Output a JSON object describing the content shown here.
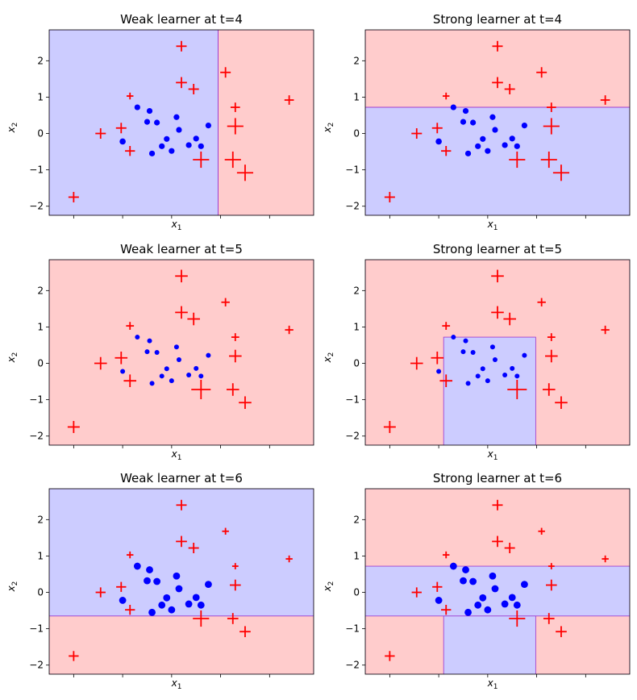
{
  "colors": {
    "positive_region": "#ffcccc",
    "negative_region": "#ccccff",
    "positive_marker": "#ff0000",
    "negative_marker": "#0000ff",
    "boundary": "#9932cc"
  },
  "axes_common": {
    "xlabel": "x_1",
    "ylabel": "x_2",
    "xlim": [
      -2.5,
      2.9
    ],
    "ylim": [
      -2.25,
      2.85
    ],
    "yticks": [
      -2,
      -1,
      0,
      1,
      2
    ],
    "yticklabels": [
      "−2",
      "−1",
      "0",
      "1",
      "2"
    ],
    "xticks": [
      -2,
      -1,
      0,
      1,
      2
    ],
    "x_tick_labels_shown": false
  },
  "points": {
    "positive": [
      {
        "x": -2.0,
        "y": -1.75
      },
      {
        "x": -1.45,
        "y": 0.0
      },
      {
        "x": -1.03,
        "y": 0.15
      },
      {
        "x": -0.85,
        "y": -0.48
      },
      {
        "x": -0.85,
        "y": 1.03
      },
      {
        "x": 0.2,
        "y": 1.4
      },
      {
        "x": 0.2,
        "y": 2.4
      },
      {
        "x": 0.45,
        "y": 1.22
      },
      {
        "x": 0.6,
        "y": -0.72
      },
      {
        "x": 1.1,
        "y": 1.68
      },
      {
        "x": 1.3,
        "y": 0.72
      },
      {
        "x": 1.3,
        "y": 0.2
      },
      {
        "x": 1.25,
        "y": -0.72
      },
      {
        "x": 1.5,
        "y": -1.08
      },
      {
        "x": 2.4,
        "y": 0.92
      }
    ],
    "negative": [
      {
        "x": -1.0,
        "y": -0.22
      },
      {
        "x": -0.7,
        "y": 0.72
      },
      {
        "x": -0.5,
        "y": 0.32
      },
      {
        "x": -0.45,
        "y": 0.62
      },
      {
        "x": -0.4,
        "y": -0.55
      },
      {
        "x": -0.2,
        "y": -0.35
      },
      {
        "x": -0.3,
        "y": 0.3
      },
      {
        "x": -0.1,
        "y": -0.15
      },
      {
        "x": 0.0,
        "y": -0.48
      },
      {
        "x": 0.1,
        "y": 0.45
      },
      {
        "x": 0.15,
        "y": 0.1
      },
      {
        "x": 0.35,
        "y": -0.32
      },
      {
        "x": 0.5,
        "y": -0.14
      },
      {
        "x": 0.6,
        "y": -0.35
      },
      {
        "x": 0.75,
        "y": 0.22
      }
    ]
  },
  "chart_data": [
    {
      "type": "scatter",
      "title": "Weak learner at t=4",
      "xlabel": "x_1",
      "ylabel": "x_2",
      "regions": [
        {
          "label": "negative",
          "rect": [
            -2.5,
            0.95,
            -2.25,
            2.85
          ]
        },
        {
          "label": "positive",
          "rect": [
            0.95,
            2.9,
            -2.25,
            2.85
          ]
        }
      ],
      "pos_sizes": [
        1.0,
        1.0,
        1.0,
        0.95,
        0.65,
        1.05,
        1.0,
        1.0,
        1.55,
        1.0,
        0.9,
        1.55,
        1.55,
        1.55,
        0.9
      ],
      "neg_sizes": [
        0.95,
        0.9,
        0.9,
        0.9,
        0.9,
        0.9,
        0.9,
        0.9,
        0.9,
        0.9,
        0.9,
        0.9,
        0.9,
        0.9,
        0.9
      ]
    },
    {
      "type": "scatter",
      "title": "Strong learner at t=4",
      "xlabel": "x_1",
      "ylabel": "x_2",
      "regions": [
        {
          "label": "positive",
          "rect": [
            -2.5,
            2.9,
            0.72,
            2.85
          ]
        },
        {
          "label": "negative",
          "rect": [
            -2.5,
            2.9,
            -2.25,
            0.72
          ]
        }
      ],
      "pos_sizes": [
        1.0,
        1.0,
        1.0,
        0.95,
        0.65,
        1.05,
        1.0,
        1.0,
        1.55,
        1.0,
        0.9,
        1.55,
        1.55,
        1.55,
        0.9
      ],
      "neg_sizes": [
        0.95,
        0.9,
        0.9,
        0.9,
        0.9,
        0.9,
        0.9,
        0.9,
        0.9,
        0.9,
        0.9,
        0.9,
        0.9,
        0.9,
        0.9
      ]
    },
    {
      "type": "scatter",
      "title": "Weak learner at t=5",
      "xlabel": "x_1",
      "ylabel": "x_2",
      "regions": [
        {
          "label": "positive",
          "rect": [
            -2.5,
            2.9,
            -2.25,
            2.85
          ]
        }
      ],
      "pos_sizes": [
        1.15,
        1.2,
        1.2,
        1.2,
        0.75,
        1.2,
        1.2,
        1.2,
        1.85,
        0.8,
        0.75,
        1.2,
        1.2,
        1.2,
        0.8
      ],
      "neg_sizes": [
        0.75,
        0.75,
        0.75,
        0.75,
        0.75,
        0.75,
        0.75,
        0.75,
        0.75,
        0.75,
        0.75,
        0.75,
        0.75,
        0.75,
        0.75
      ]
    },
    {
      "type": "scatter",
      "title": "Strong learner at t=5",
      "xlabel": "x_1",
      "ylabel": "x_2",
      "regions": [
        {
          "label": "positive",
          "rect": [
            -2.5,
            2.9,
            -2.25,
            2.85
          ]
        },
        {
          "label": "negative",
          "rect": [
            -0.9,
            0.98,
            -2.25,
            0.72
          ]
        }
      ],
      "pos_sizes": [
        1.15,
        1.2,
        1.2,
        1.2,
        0.75,
        1.2,
        1.2,
        1.2,
        1.85,
        0.8,
        0.75,
        1.2,
        1.2,
        1.2,
        0.8
      ],
      "neg_sizes": [
        0.75,
        0.75,
        0.75,
        0.75,
        0.75,
        0.75,
        0.75,
        0.75,
        0.75,
        0.75,
        0.75,
        0.75,
        0.75,
        0.75,
        0.75
      ]
    },
    {
      "type": "scatter",
      "title": "Weak learner at t=6",
      "xlabel": "x_1",
      "ylabel": "x_2",
      "regions": [
        {
          "label": "negative",
          "rect": [
            -2.5,
            2.9,
            -0.65,
            2.85
          ]
        },
        {
          "label": "positive",
          "rect": [
            -2.5,
            2.9,
            -2.25,
            -0.65
          ]
        }
      ],
      "pos_sizes": [
        0.95,
        0.95,
        0.95,
        0.95,
        0.65,
        1.05,
        1.0,
        1.0,
        1.55,
        0.65,
        0.6,
        1.05,
        1.05,
        1.05,
        0.65
      ],
      "neg_sizes": [
        1.1,
        1.1,
        1.1,
        1.1,
        1.1,
        1.1,
        1.1,
        1.1,
        1.1,
        1.1,
        1.1,
        1.1,
        1.1,
        1.1,
        1.1
      ]
    },
    {
      "type": "scatter",
      "title": "Strong learner at t=6",
      "xlabel": "x_1",
      "ylabel": "x_2",
      "regions": [
        {
          "label": "positive",
          "rect": [
            -2.5,
            2.9,
            -2.25,
            2.85
          ]
        },
        {
          "label": "negative",
          "rect": [
            -2.5,
            2.9,
            -0.65,
            0.72
          ]
        },
        {
          "label": "negative",
          "rect": [
            -0.9,
            0.98,
            -2.25,
            -0.65
          ]
        }
      ],
      "pos_sizes": [
        0.95,
        0.95,
        0.95,
        0.95,
        0.65,
        1.05,
        1.0,
        1.0,
        1.55,
        0.65,
        0.6,
        1.05,
        1.05,
        1.05,
        0.65
      ],
      "neg_sizes": [
        1.1,
        1.1,
        1.1,
        1.1,
        1.1,
        1.1,
        1.1,
        1.1,
        1.1,
        1.1,
        1.1,
        1.1,
        1.1,
        1.1,
        1.1
      ]
    }
  ]
}
